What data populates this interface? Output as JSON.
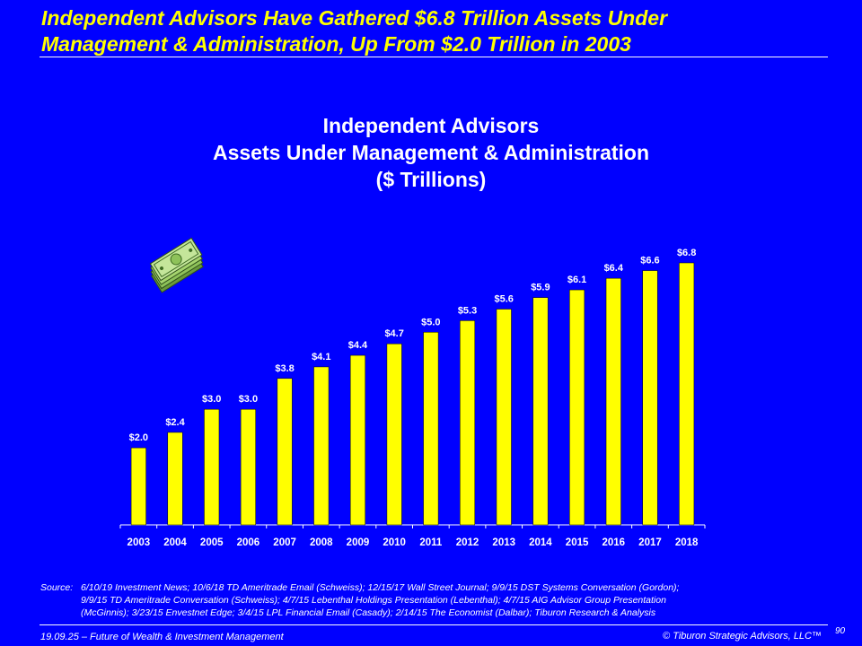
{
  "slide": {
    "title_line1": "Independent Advisors Have Gathered $6.8 Trillion Assets Under",
    "title_line2": "Management & Administration, Up From $2.0 Trillion in 2003"
  },
  "colors": {
    "background": "#0000FF",
    "title": "#FFFF00",
    "bar": "#FFFF00",
    "text": "#FFFFFF"
  },
  "chart_data": {
    "type": "bar",
    "title": [
      "Independent Advisors",
      "Assets Under Management & Administration",
      "($ Trillions)"
    ],
    "categories": [
      "2003",
      "2004",
      "2005",
      "2006",
      "2007",
      "2008",
      "2009",
      "2010",
      "2011",
      "2012",
      "2013",
      "2014",
      "2015",
      "2016",
      "2017",
      "2018"
    ],
    "values": [
      2.0,
      2.4,
      3.0,
      3.0,
      3.8,
      4.1,
      4.4,
      4.7,
      5.0,
      5.3,
      5.6,
      5.9,
      6.1,
      6.4,
      6.6,
      6.8
    ],
    "data_labels": [
      "$2.0",
      "$2.4",
      "$3.0",
      "$3.0",
      "$3.8",
      "$4.1",
      "$4.4",
      "$4.7",
      "$5.0",
      "$5.3",
      "$5.6",
      "$5.9",
      "$6.1",
      "$6.4",
      "$6.6",
      "$6.8"
    ],
    "xlabel": "",
    "ylabel": "",
    "ylim": [
      0,
      6.8
    ],
    "grid": false,
    "legend": "none"
  },
  "icon": "money-stack-icon",
  "source": {
    "label": "Source:",
    "lines": [
      "6/10/19 Investment News; 10/6/18 TD Ameritrade Email (Schweiss); 12/15/17 Wall Street Journal; 9/9/15 DST Systems Conversation (Gordon);",
      "9/9/15 TD Ameritrade Conversation (Schweiss); 4/7/15 Lebenthal Holdings Presentation (Lebenthal); 4/7/15 AIG Advisor Group Presentation",
      "(McGinnis); 3/23/15 Envestnet Edge; 3/4/15 LPL Financial Email (Casady); 2/14/15 The Economist (Dalbar); Tiburon Research & Analysis"
    ]
  },
  "footer": {
    "left": "19.09.25 – Future of Wealth & Investment Management",
    "right": "© Tiburon Strategic Advisors, LLC™",
    "page": "90"
  }
}
